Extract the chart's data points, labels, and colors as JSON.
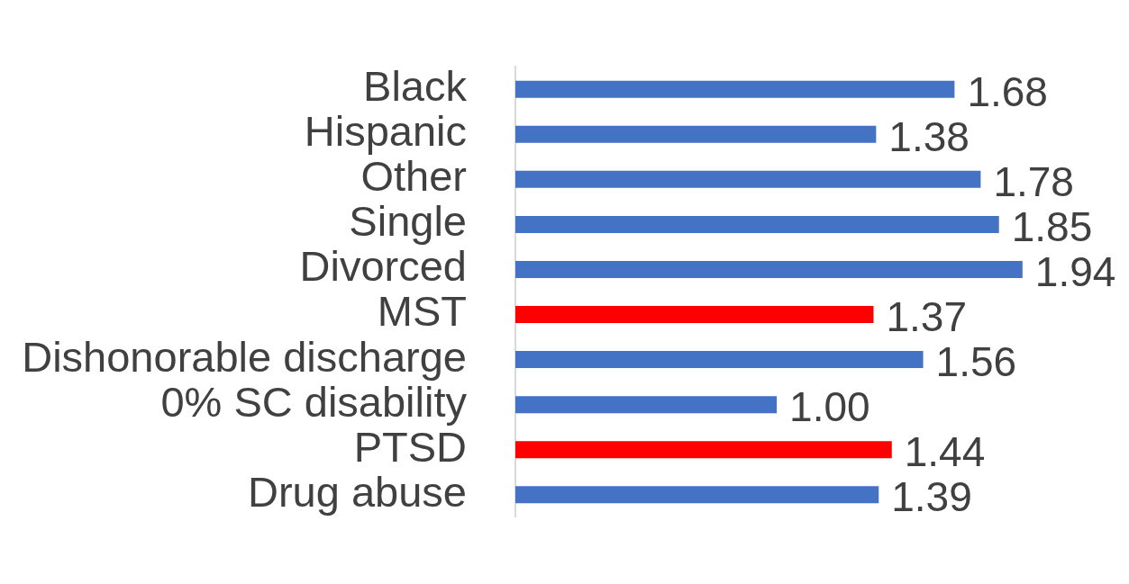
{
  "chart_data": {
    "type": "bar",
    "orientation": "horizontal",
    "categories": [
      "Black",
      "Hispanic",
      "Other",
      "Single",
      "Divorced",
      "MST",
      "Dishonorable discharge",
      "0% SC disability",
      "PTSD",
      "Drug abuse"
    ],
    "values": [
      1.68,
      1.38,
      1.78,
      1.85,
      1.94,
      1.37,
      1.56,
      1.0,
      1.44,
      1.39
    ],
    "value_labels": [
      "1.68",
      "1.38",
      "1.78",
      "1.85",
      "1.94",
      "1.37",
      "1.56",
      "1.00",
      "1.44",
      "1.39"
    ],
    "colors": [
      "#4472c4",
      "#4472c4",
      "#4472c4",
      "#4472c4",
      "#4472c4",
      "#ff0000",
      "#4472c4",
      "#4472c4",
      "#ff0000",
      "#4472c4"
    ],
    "legend": false
  }
}
